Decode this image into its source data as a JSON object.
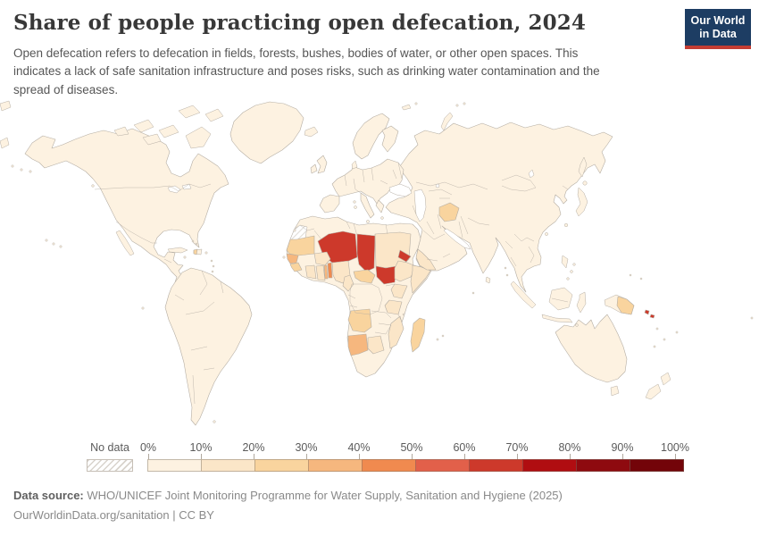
{
  "header": {
    "title": "Share of people practicing open defecation, 2024",
    "subtitle_lines": [
      "Open defecation refers to defecation in fields, forests, bushes, bodies of water, or other open spaces. This",
      "indicates a lack of safe sanitation infrastructure and poses risks, such as drinking water contamination and the",
      "spread of diseases."
    ]
  },
  "logo": {
    "line1": "Our World",
    "line2": "in Data",
    "bg_color": "#1d3d63",
    "accent_color": "#c43d33"
  },
  "legend": {
    "no_data_label": "No data",
    "tick_labels": [
      "0%",
      "10%",
      "20%",
      "30%",
      "40%",
      "50%",
      "60%",
      "70%",
      "80%",
      "90%",
      "100%"
    ],
    "colors": [
      "#fdf2e1",
      "#fbe6c8",
      "#f9d49e",
      "#f6b77e",
      "#f08a4f",
      "#e2604a",
      "#cd392b",
      "#b00d11",
      "#8e0a0f",
      "#730409"
    ]
  },
  "map": {
    "ocean_color": "#ffffff",
    "land_default_color": "#fdf2e1",
    "border_color": "#b5aea4",
    "country_colors": {
      "niger": "#cd392b",
      "chad": "#cd392b",
      "south-sudan": "#cd392b",
      "eritrea": "#cd392b",
      "solomon-islands": "#cd392b",
      "benin": "#f08a4f",
      "togo": "#f6b77e",
      "namibia": "#f6b77e",
      "senegal": "#f6b77e",
      "mauritania": "#f9d49e",
      "guinea": "#f9d49e",
      "central-african-republic": "#f9d49e",
      "angola": "#f9d49e",
      "madagascar": "#f9d49e",
      "afghanistan": "#f9d49e",
      "papua-new-guinea": "#f9d49e",
      "haiti": "#f9d49e",
      "sudan": "#fbe6c8",
      "ethiopia": "#fbe6c8",
      "somalia": "#fbe6c8",
      "burkina-faso": "#fbe6c8",
      "cote-divoire": "#fbe6c8",
      "ghana": "#fbe6c8",
      "nigeria": "#fbe6c8",
      "cameroon": "#fbe6c8",
      "mozambique": "#fbe6c8",
      "kenya": "#fbe6c8",
      "tanzania": "#fbe6c8",
      "botswana": "#fbe6c8",
      "yemen": "#fbe6c8"
    }
  },
  "footer": {
    "source_label": "Data source:",
    "source_text": "WHO/UNICEF Joint Monitoring Programme for Water Supply, Sanitation and Hygiene (2025)",
    "link": "OurWorldinData.org/sanitation",
    "separator": " | ",
    "license": "CC BY"
  },
  "chart_data": {
    "type": "heatmap",
    "form": "world-choropleth",
    "title": "Share of people practicing open defecation, 2024",
    "unit": "% of population",
    "legend_position": "bottom",
    "colorscale_bins": [
      {
        "range": "0-10%",
        "color": "#fdf2e1"
      },
      {
        "range": "10-20%",
        "color": "#fbe6c8"
      },
      {
        "range": "20-30%",
        "color": "#f9d49e"
      },
      {
        "range": "30-40%",
        "color": "#f6b77e"
      },
      {
        "range": "40-50%",
        "color": "#f08a4f"
      },
      {
        "range": "50-60%",
        "color": "#e2604a"
      },
      {
        "range": "60-70%",
        "color": "#cd392b"
      },
      {
        "range": "70-80%",
        "color": "#b00d11"
      },
      {
        "range": "80-90%",
        "color": "#8e0a0f"
      },
      {
        "range": "90-100%",
        "color": "#730409"
      }
    ],
    "no_data": {
      "label": "No data",
      "style": "diagonal-hatch",
      "example_region": "Western Sahara"
    },
    "estimated_values_by_bin": {
      "60-70%": [
        "Niger",
        "Chad",
        "South Sudan",
        "Eritrea",
        "Solomon Islands"
      ],
      "40-50%": [
        "Benin"
      ],
      "30-40%": [
        "Togo",
        "Namibia",
        "Senegal"
      ],
      "20-30%": [
        "Mauritania",
        "Guinea",
        "Central African Republic",
        "Angola",
        "Madagascar",
        "Afghanistan",
        "Papua New Guinea",
        "Haiti"
      ],
      "10-20%": [
        "Sudan",
        "Ethiopia",
        "Somalia",
        "Burkina Faso",
        "Ghana",
        "Côte d'Ivoire",
        "Nigeria",
        "Cameroon",
        "Mozambique",
        "Kenya",
        "Tanzania",
        "Botswana",
        "Yemen"
      ],
      "0-10%": [
        "Most other countries shown (Americas, Europe, most of Asia, Oceania)"
      ]
    }
  }
}
